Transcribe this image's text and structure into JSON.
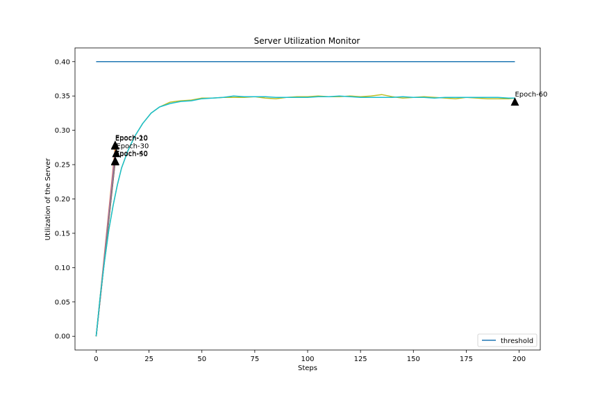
{
  "chart_data": {
    "type": "line",
    "title": "Server Utilization Monitor",
    "xlabel": "Steps",
    "ylabel": "Utilization of the Server",
    "xlim": [
      -10,
      210
    ],
    "ylim": [
      -0.02,
      0.42
    ],
    "xticks": [
      0,
      25,
      50,
      75,
      100,
      125,
      150,
      175,
      200
    ],
    "xtick_labels": [
      "0",
      "25",
      "50",
      "75",
      "100",
      "125",
      "150",
      "175",
      "200"
    ],
    "yticks": [
      0.0,
      0.05,
      0.1,
      0.15,
      0.2,
      0.25,
      0.3,
      0.35,
      0.4
    ],
    "ytick_labels": [
      "0.00",
      "0.05",
      "0.10",
      "0.15",
      "0.20",
      "0.25",
      "0.30",
      "0.35",
      "0.40"
    ],
    "grid": false,
    "legend": {
      "position": "lower-right",
      "entries": [
        {
          "label": "threshold",
          "color": "#1f77b4"
        }
      ]
    },
    "threshold": {
      "name": "threshold",
      "color": "#1f77b4",
      "x": [
        0,
        198
      ],
      "y": [
        0.4,
        0.4
      ]
    },
    "series": [
      {
        "color": "#ff7f0e",
        "x": [
          0,
          9
        ],
        "y": [
          0.0,
          0.275
        ]
      },
      {
        "color": "#2ca02c",
        "x": [
          0,
          9
        ],
        "y": [
          0.0,
          0.262
        ]
      },
      {
        "color": "#d62728",
        "x": [
          0,
          9
        ],
        "y": [
          0.0,
          0.255
        ]
      },
      {
        "color": "#9467bd",
        "x": [
          0,
          9
        ],
        "y": [
          0.0,
          0.27
        ]
      },
      {
        "color": "#8c564b",
        "x": [
          0,
          9
        ],
        "y": [
          0.0,
          0.255
        ]
      },
      {
        "color": "#e377c2",
        "x": [
          0,
          9
        ],
        "y": [
          0.0,
          0.262
        ]
      },
      {
        "color": "#7f7f7f",
        "x": [
          0,
          9
        ],
        "y": [
          0.0,
          0.258
        ]
      },
      {
        "color": "#bcbd22",
        "x": [
          0,
          2,
          4,
          6,
          8,
          10,
          12,
          15,
          18,
          22,
          26,
          30,
          35,
          40,
          45,
          50,
          55,
          60,
          65,
          70,
          75,
          80,
          85,
          90,
          95,
          100,
          105,
          110,
          115,
          120,
          125,
          130,
          135,
          140,
          145,
          150,
          155,
          160,
          165,
          170,
          175,
          180,
          185,
          190,
          195,
          198
        ],
        "y": [
          0.0,
          0.06,
          0.11,
          0.155,
          0.19,
          0.22,
          0.245,
          0.27,
          0.29,
          0.31,
          0.325,
          0.334,
          0.341,
          0.343,
          0.344,
          0.347,
          0.347,
          0.348,
          0.348,
          0.348,
          0.349,
          0.347,
          0.346,
          0.348,
          0.349,
          0.349,
          0.35,
          0.349,
          0.349,
          0.35,
          0.349,
          0.35,
          0.352,
          0.349,
          0.347,
          0.348,
          0.349,
          0.348,
          0.347,
          0.346,
          0.348,
          0.347,
          0.346,
          0.346,
          0.346,
          0.347
        ]
      },
      {
        "color": "#17becf",
        "x": [
          0,
          2,
          4,
          6,
          8,
          10,
          12,
          15,
          18,
          22,
          26,
          30,
          35,
          40,
          45,
          50,
          55,
          60,
          65,
          70,
          75,
          80,
          85,
          90,
          95,
          100,
          105,
          110,
          115,
          120,
          125,
          130,
          135,
          140,
          145,
          150,
          155,
          160,
          165,
          170,
          175,
          180,
          185,
          190,
          195,
          198
        ],
        "y": [
          0.0,
          0.06,
          0.11,
          0.155,
          0.19,
          0.22,
          0.245,
          0.27,
          0.29,
          0.31,
          0.325,
          0.334,
          0.339,
          0.342,
          0.343,
          0.346,
          0.347,
          0.348,
          0.35,
          0.349,
          0.349,
          0.349,
          0.348,
          0.348,
          0.348,
          0.348,
          0.349,
          0.349,
          0.35,
          0.349,
          0.348,
          0.348,
          0.348,
          0.348,
          0.349,
          0.348,
          0.348,
          0.347,
          0.348,
          0.348,
          0.348,
          0.348,
          0.348,
          0.348,
          0.347,
          0.347
        ]
      }
    ],
    "annotations": [
      {
        "text": "Epoch-10",
        "x": 9,
        "y": 0.279,
        "marker": "triangle"
      },
      {
        "text": "Epoch-20",
        "x": 9,
        "y": 0.278,
        "marker": "triangle"
      },
      {
        "text": "Epoch-30",
        "x": 9.5,
        "y": 0.267,
        "marker": "triangle"
      },
      {
        "text": "Epoch-40",
        "x": 9,
        "y": 0.256,
        "marker": "triangle"
      },
      {
        "text": "Epoch-50",
        "x": 9,
        "y": 0.255,
        "marker": "triangle"
      },
      {
        "text": "Epoch-60",
        "x": 198,
        "y": 0.342,
        "marker": "triangle"
      }
    ]
  }
}
